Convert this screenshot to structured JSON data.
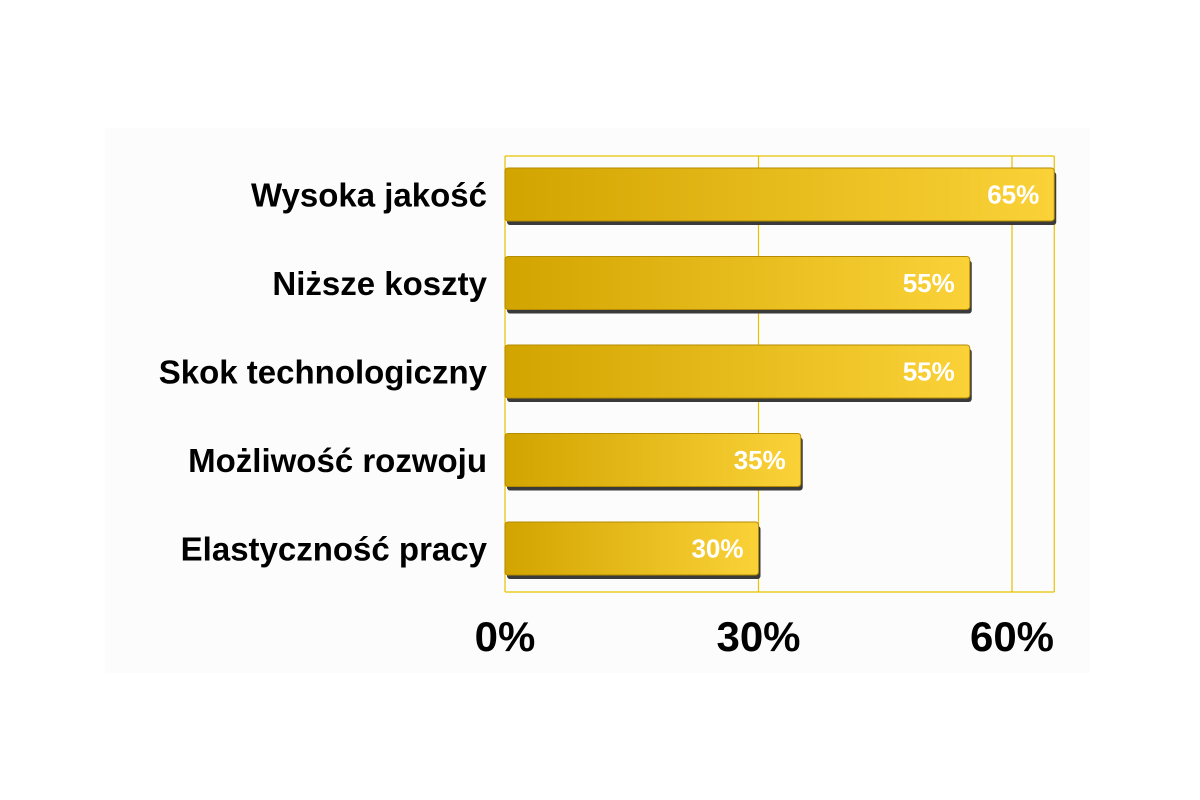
{
  "chart_data": {
    "type": "bar",
    "orientation": "horizontal",
    "categories": [
      "Wysoka jakość",
      "Niższe koszty",
      "Skok technologiczny",
      "Możliwość rozwoju",
      "Elastyczność pracy"
    ],
    "values": [
      65,
      55,
      55,
      35,
      30
    ],
    "value_labels": [
      "65%",
      "55%",
      "55%",
      "35%",
      "30%"
    ],
    "title": "",
    "xlabel": "",
    "ylabel": "",
    "xlim": [
      0,
      65
    ],
    "x_ticks": [
      0,
      30,
      60
    ],
    "x_tick_labels": [
      "0%",
      "30%",
      "60%"
    ],
    "grid": true,
    "legend": "none"
  },
  "colors": {
    "bar_dark": "#d2a400",
    "bar_light": "#fad238",
    "bar_shadow": "#3a3a3a",
    "grid": "#e6c200",
    "plot_background": "#fcfcfc"
  }
}
